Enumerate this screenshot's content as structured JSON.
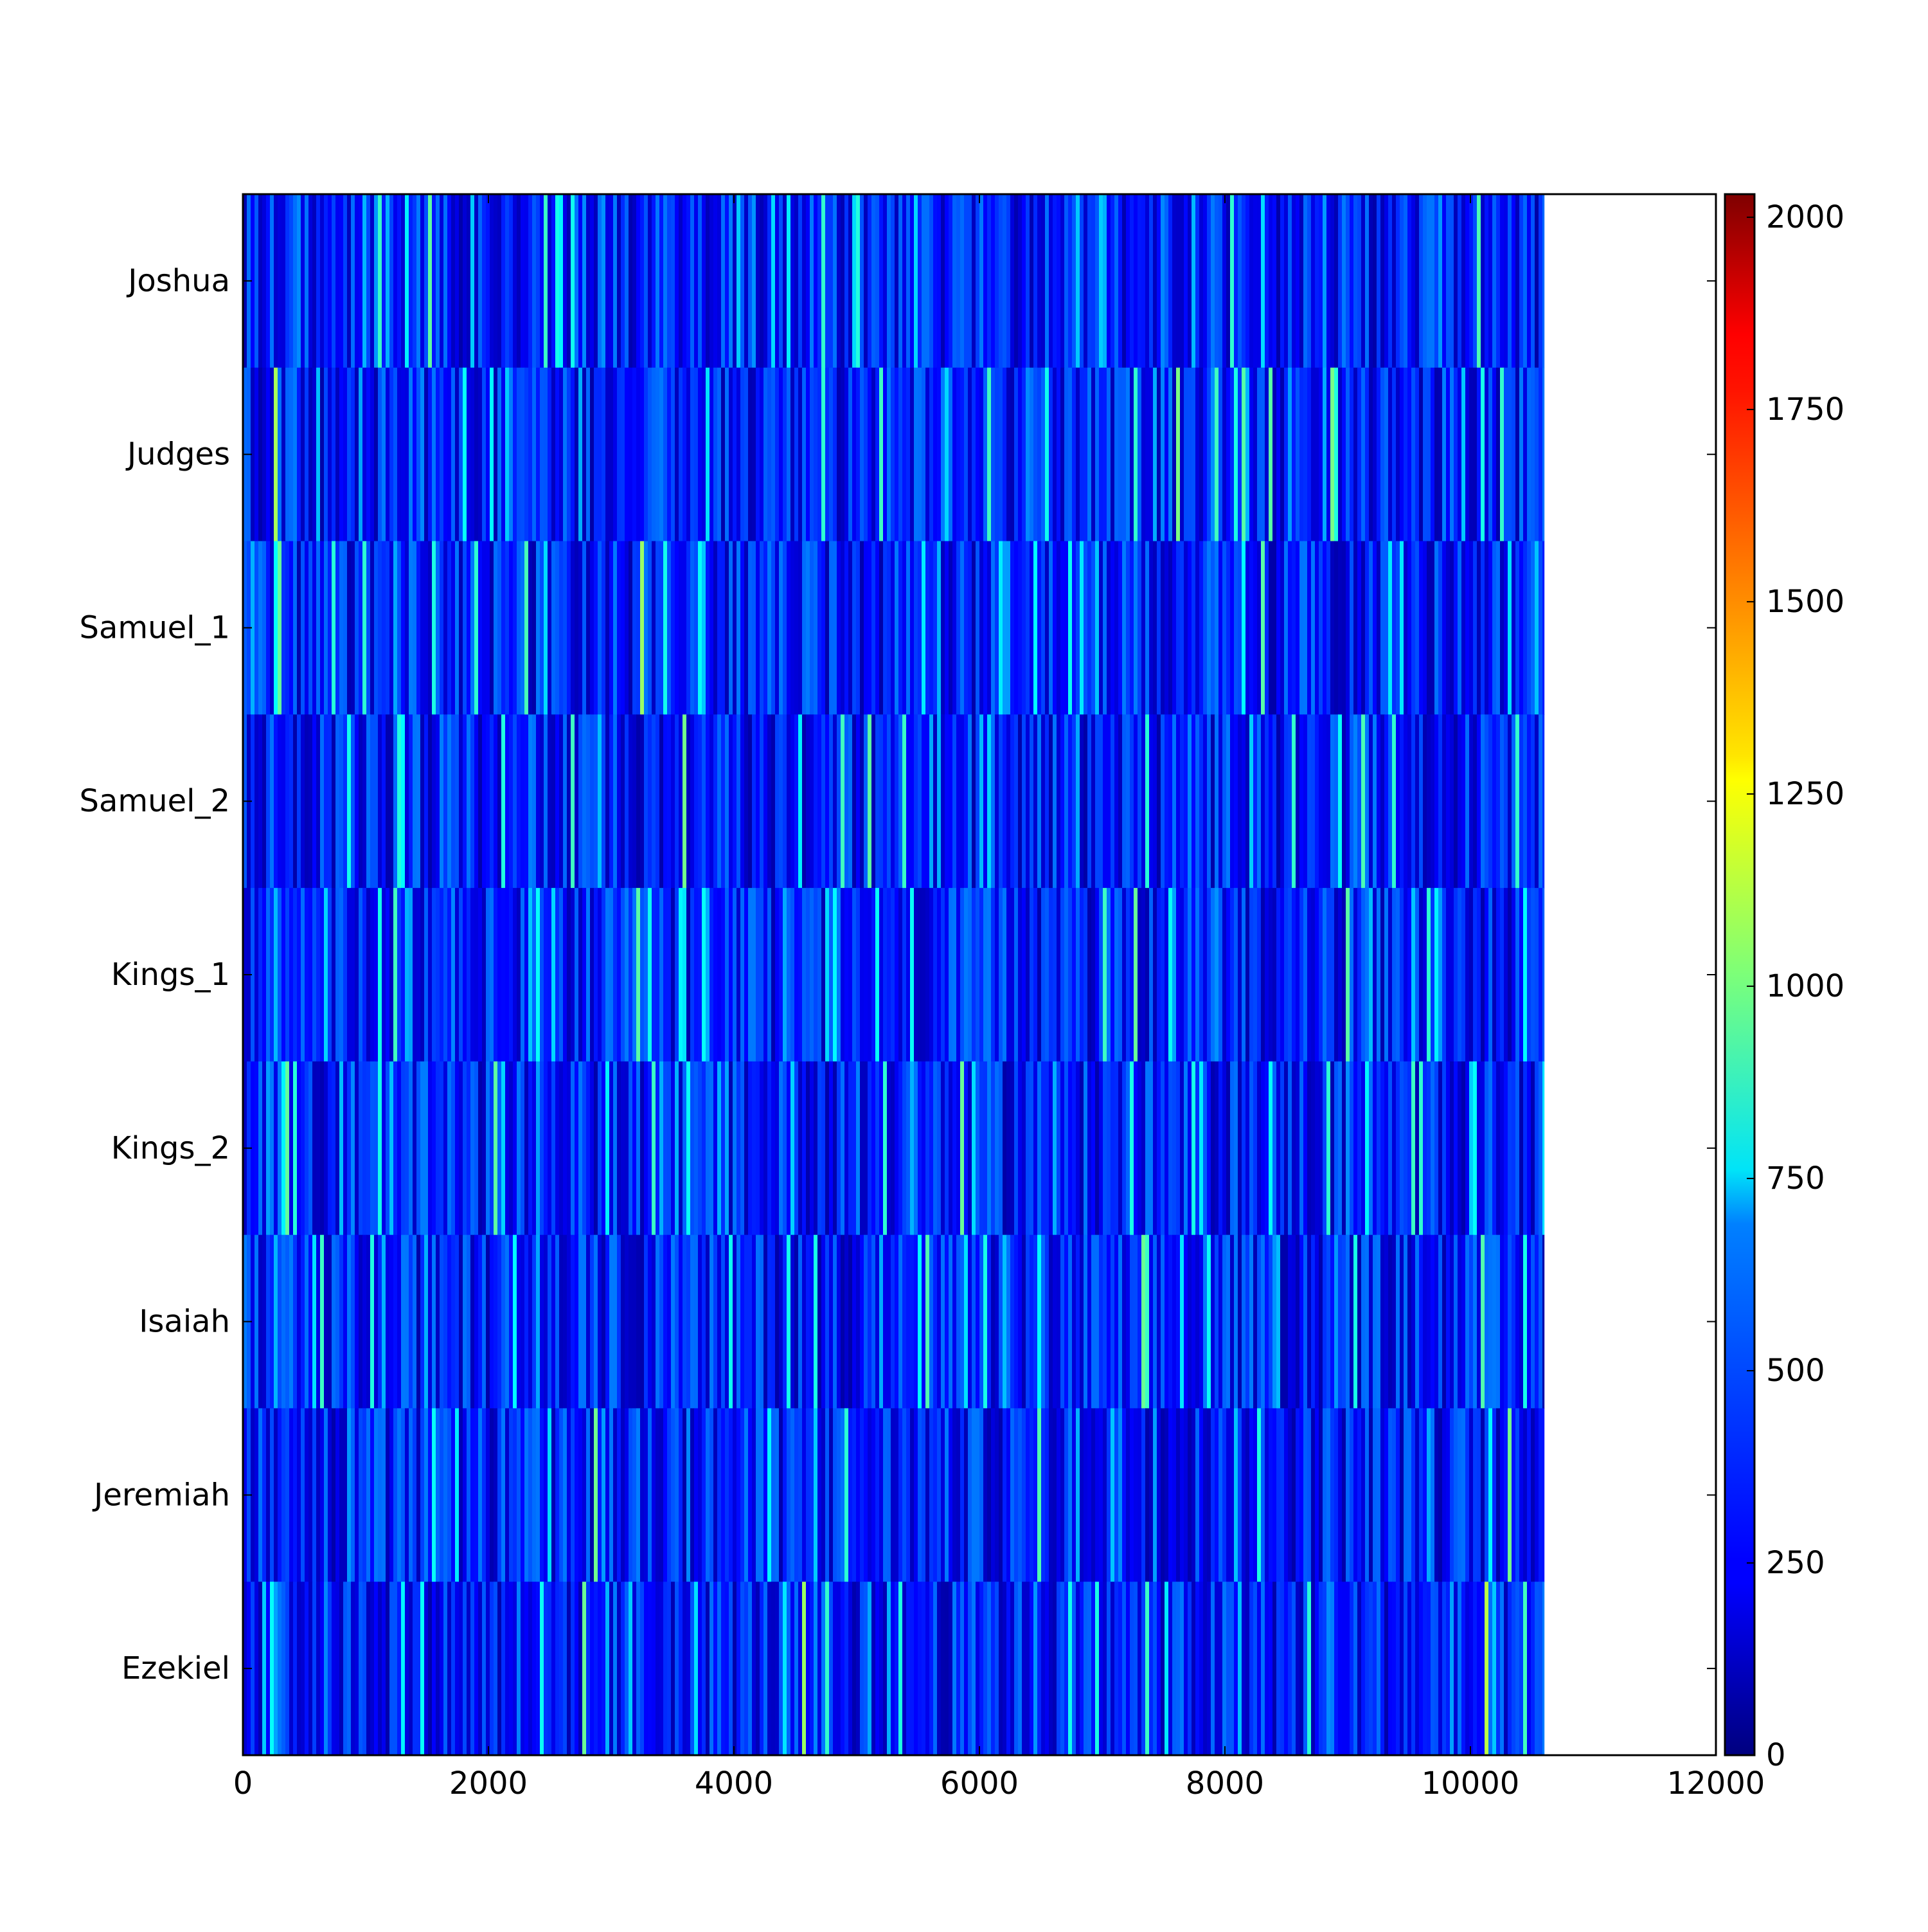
{
  "chart_data": {
    "type": "heatmap",
    "title": "",
    "xlabel": "",
    "ylabel": "",
    "xlim": [
      0,
      12000
    ],
    "x_ticks": [
      0,
      2000,
      4000,
      6000,
      8000,
      10000,
      12000
    ],
    "x_tick_labels": [
      "0",
      "2000",
      "4000",
      "6000",
      "8000",
      "10000",
      "12000"
    ],
    "rows": [
      "Joshua",
      "Judges",
      "Samuel_1",
      "Samuel_2",
      "Kings_1",
      "Kings_2",
      "Isaiah",
      "Jeremiah",
      "Ezekiel"
    ],
    "data_extent_x": [
      0,
      10600
    ],
    "value_range_typical": [
      0,
      900
    ],
    "colormap": "jet",
    "colorbar": {
      "range": [
        0,
        2030
      ],
      "ticks": [
        0,
        250,
        500,
        750,
        1000,
        1250,
        1500,
        1750,
        2000
      ],
      "tick_labels": [
        "0",
        "250",
        "500",
        "750",
        "1000",
        "1250",
        "1500",
        "1750",
        "2000"
      ]
    },
    "grid": false,
    "legend": "none"
  }
}
